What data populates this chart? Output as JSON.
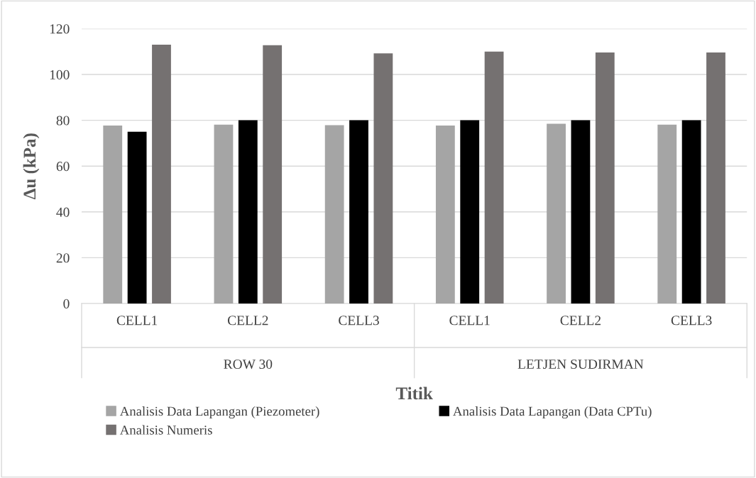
{
  "chart_data": {
    "type": "bar",
    "xlabel": "Titik",
    "ylabel": "Δu (kPa)",
    "categories": [
      "CELL1",
      "CELL2",
      "CELL3",
      "CELL1",
      "CELL2",
      "CELL3"
    ],
    "series": [
      {
        "name": "Analisis Data Lapangan (Piezometer)",
        "color": "#a5a5a5",
        "values": [
          77.7,
          78.1,
          77.9,
          77.7,
          78.5,
          78.1
        ]
      },
      {
        "name": "Analisis Data Lapangan (Data CPTu)",
        "color": "#000000",
        "values": [
          75.0,
          80.0,
          80.0,
          80.0,
          80.0,
          80.0
        ]
      },
      {
        "name": "Analisis Numeris",
        "color": "#757171",
        "values": [
          113.0,
          112.8,
          109.2,
          110.0,
          109.6,
          109.6
        ]
      }
    ],
    "annotations": [
      "ROW 30",
      "LETJEN SUDIRMAN"
    ],
    "ylim": [
      0,
      120
    ],
    "yticks": [
      0,
      20,
      40,
      60,
      80,
      100,
      120
    ],
    "grid": "y",
    "legend": "bottom"
  }
}
